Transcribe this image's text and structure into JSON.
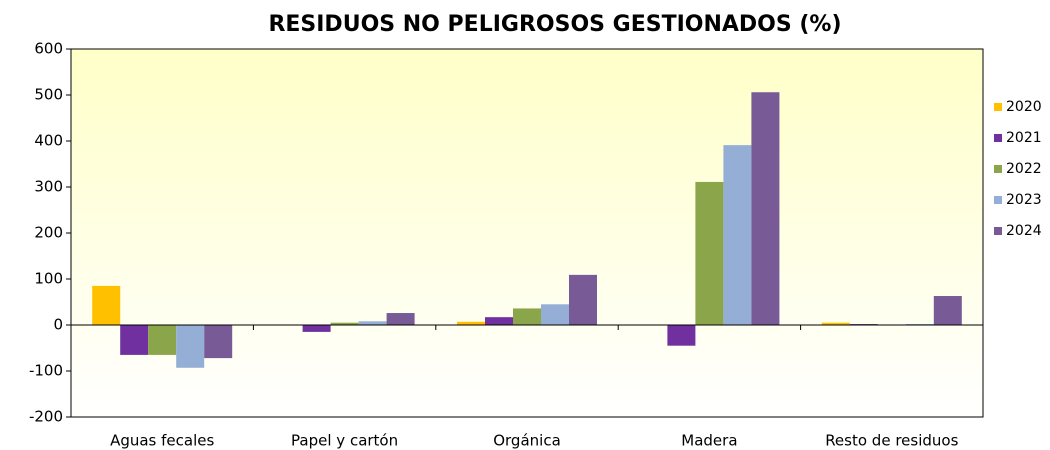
{
  "chart_data": {
    "type": "bar",
    "title": "RESIDUOS NO PELIGROSOS GESTIONADOS (%)",
    "categories": [
      "Aguas fecales",
      "Papel y cartón",
      "Orgánica",
      "Madera",
      "Resto de residuos"
    ],
    "series": [
      {
        "name": "2020",
        "color": "#FFC000",
        "values": [
          85,
          0,
          7,
          0,
          5
        ]
      },
      {
        "name": "2021",
        "color": "#7030A0",
        "values": [
          -65,
          -15,
          17,
          -45,
          2
        ]
      },
      {
        "name": "2022",
        "color": "#8BA64A",
        "values": [
          -65,
          5,
          36,
          311,
          0
        ]
      },
      {
        "name": "2023",
        "color": "#95AED6",
        "values": [
          -93,
          8,
          45,
          391,
          2
        ]
      },
      {
        "name": "2024",
        "color": "#775A96",
        "values": [
          -72,
          26,
          109,
          506,
          63
        ]
      }
    ],
    "ylim": [
      -200,
      600
    ],
    "yticks": [
      -200,
      -100,
      0,
      100,
      200,
      300,
      400,
      500,
      600
    ],
    "grid": false,
    "legend": "right"
  }
}
